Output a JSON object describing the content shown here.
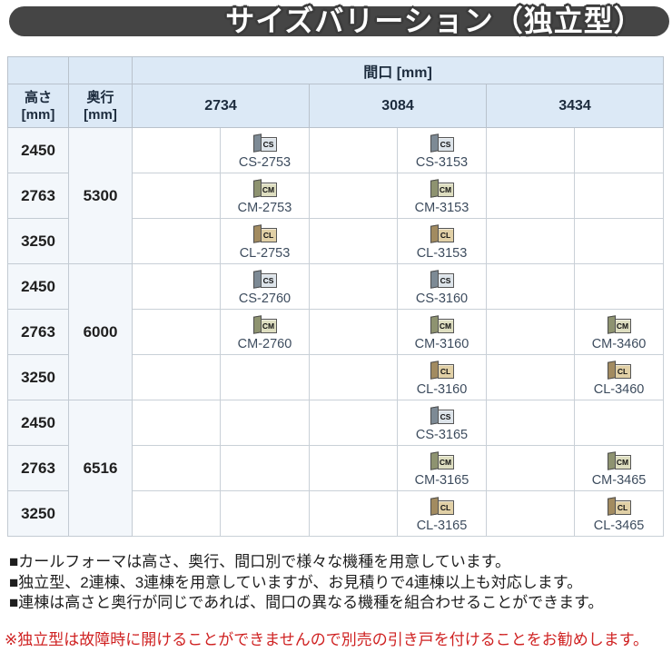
{
  "title": "サイズバリーション（独立型）",
  "table": {
    "span_header": "間口 [mm]",
    "col1_header": "高さ\n[mm]",
    "col2_header": "奥行\n[mm]",
    "width_columns": [
      "2734",
      "3084",
      "3434"
    ],
    "row_groups": [
      {
        "depth": "5300",
        "rows": [
          {
            "height": "2450",
            "products": [
              {
                "type": "CS",
                "model": "CS-2753"
              },
              {
                "type": "CS",
                "model": "CS-3153"
              },
              null
            ]
          },
          {
            "height": "2763",
            "products": [
              {
                "type": "CM",
                "model": "CM-2753"
              },
              {
                "type": "CM",
                "model": "CM-3153"
              },
              null
            ]
          },
          {
            "height": "3250",
            "products": [
              {
                "type": "CL",
                "model": "CL-2753"
              },
              {
                "type": "CL",
                "model": "CL-3153"
              },
              null
            ]
          }
        ]
      },
      {
        "depth": "6000",
        "rows": [
          {
            "height": "2450",
            "products": [
              {
                "type": "CS",
                "model": "CS-2760"
              },
              {
                "type": "CS",
                "model": "CS-3160"
              },
              null
            ]
          },
          {
            "height": "2763",
            "products": [
              {
                "type": "CM",
                "model": "CM-2760"
              },
              {
                "type": "CM",
                "model": "CM-3160"
              },
              {
                "type": "CM",
                "model": "CM-3460"
              }
            ]
          },
          {
            "height": "3250",
            "products": [
              null,
              {
                "type": "CL",
                "model": "CL-3160"
              },
              {
                "type": "CL",
                "model": "CL-3460"
              }
            ]
          }
        ]
      },
      {
        "depth": "6516",
        "rows": [
          {
            "height": "2450",
            "products": [
              null,
              {
                "type": "CS",
                "model": "CS-3165"
              },
              null
            ]
          },
          {
            "height": "2763",
            "products": [
              null,
              {
                "type": "CM",
                "model": "CM-3165"
              },
              {
                "type": "CM",
                "model": "CM-3465"
              }
            ]
          },
          {
            "height": "3250",
            "products": [
              null,
              {
                "type": "CL",
                "model": "CL-3165"
              },
              {
                "type": "CL",
                "model": "CL-3465"
              }
            ]
          }
        ]
      }
    ]
  },
  "notes": [
    "■カールフォーマは高さ、奥行、間口別で様々な機種を用意しています。",
    "■独立型、2連棟、3連棟を用意していますが、お見積りで4連棟以上も対応します。",
    "■連棟は高さと奥行が同じであれば、間口の異なる機種を組合わせることができます。"
  ],
  "warning": "※独立型は故障時に開けることができませんので別売の引き戸を付けることをお勧めします。",
  "colors": {
    "title_bar": "#454545",
    "header_bg": "#dce9f6",
    "row_header_bg": "#f3f7fb",
    "accent_red": "#cf2121",
    "model_text": "#3d4c5e",
    "icon_cs_face": "#dde4ea",
    "icon_cm_face": "#dedec0",
    "icon_cl_face": "#e1d0a6"
  }
}
